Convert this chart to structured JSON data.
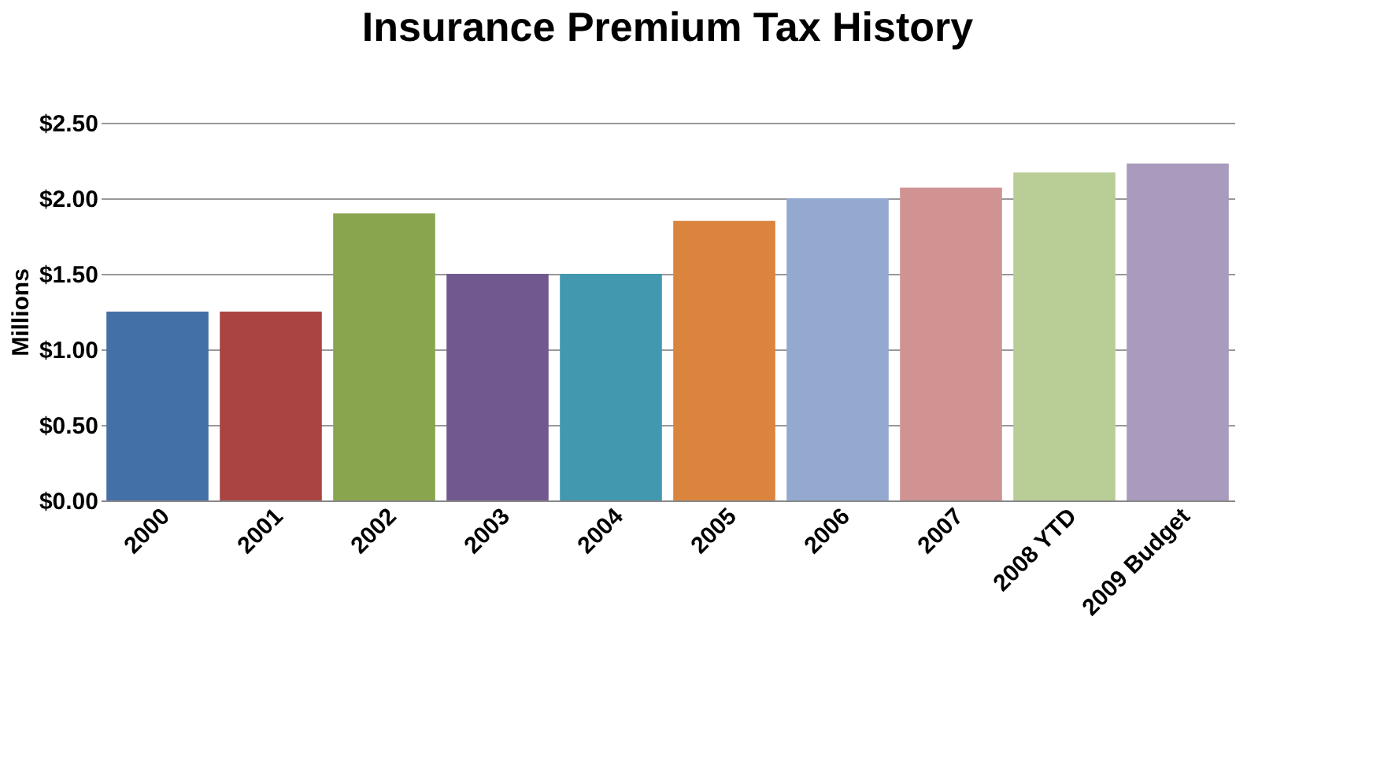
{
  "chart_data": {
    "type": "bar",
    "title": "Insurance Premium Tax History",
    "ylabel": "Millions",
    "categories": [
      "2000",
      "2001",
      "2002",
      "2003",
      "2004",
      "2005",
      "2006",
      "2007",
      "2008 YTD",
      "2009 Budget"
    ],
    "values": [
      1.25,
      1.25,
      1.9,
      1.5,
      1.5,
      1.85,
      2.0,
      2.07,
      2.17,
      2.23
    ],
    "colors": [
      "#4470a8",
      "#aa4443",
      "#89a54e",
      "#71588f",
      "#4298af",
      "#db843d",
      "#93a9cf",
      "#d09392",
      "#b9cd96",
      "#a99bbd"
    ],
    "ylim": [
      0,
      2.5
    ],
    "yticks": [
      {
        "value": 0,
        "label": "$0.00"
      },
      {
        "value": 0.5,
        "label": "$0.50"
      },
      {
        "value": 1,
        "label": "$1.00"
      },
      {
        "value": 1.5,
        "label": "$1.50"
      },
      {
        "value": 2,
        "label": "$2.00"
      },
      {
        "value": 2.5,
        "label": "$2.50"
      }
    ],
    "grid": true
  }
}
